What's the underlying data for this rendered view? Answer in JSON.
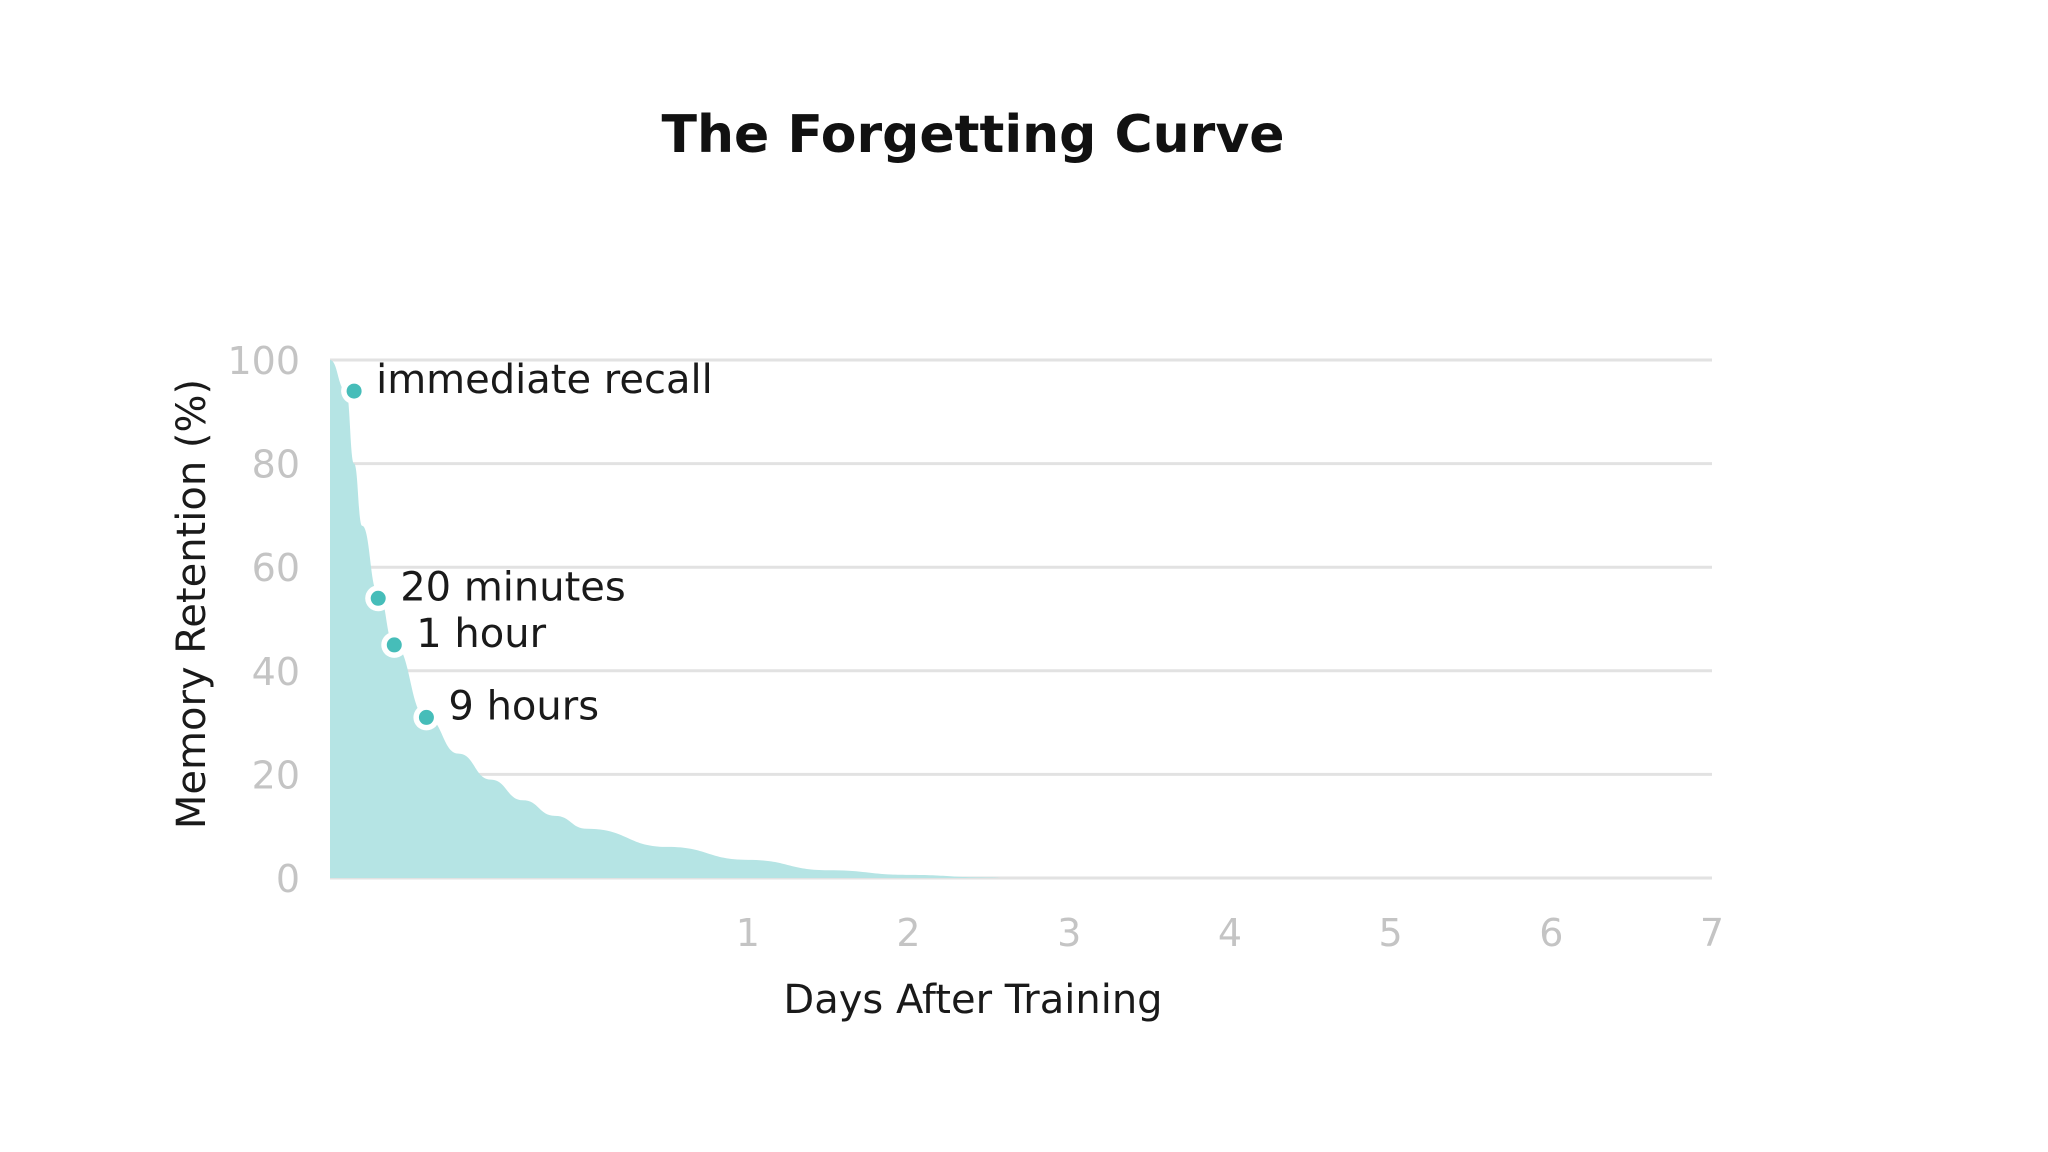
{
  "chart_data": {
    "type": "area",
    "title": "The Forgetting Curve",
    "xlabel": "Days After Training",
    "ylabel": "Memory Retention (%)",
    "xlim": [
      -1.6,
      7
    ],
    "ylim": [
      0,
      100
    ],
    "x_ticks": [
      1,
      2,
      3,
      4,
      5,
      6,
      7
    ],
    "y_ticks": [
      0,
      20,
      40,
      60,
      80,
      100
    ],
    "grid": true,
    "colors": {
      "area": "#b5e4e4",
      "point": "#46bdb9",
      "grid": "#e2e2e2",
      "tick": "#c4c4c4"
    },
    "series": [
      {
        "x": [
          -1.6,
          -1.5,
          -1.45,
          -1.4,
          -1.3,
          -1.2,
          -1.0,
          -0.8,
          -0.6,
          -0.4,
          -0.2,
          0.0,
          0.5,
          1.0,
          1.5,
          2.0,
          2.5,
          2.6
        ],
        "y": [
          100,
          94,
          80,
          68,
          55,
          45,
          31,
          24,
          19,
          15,
          12,
          9.5,
          6,
          3.5,
          1.5,
          0.6,
          0.1,
          0
        ]
      }
    ],
    "annotations": [
      {
        "label": "immediate recall",
        "x": -1.45,
        "y": 94
      },
      {
        "label": "20 minutes",
        "x": -1.3,
        "y": 54
      },
      {
        "label": "1 hour",
        "x": -1.2,
        "y": 45
      },
      {
        "label": "9 hours",
        "x": -1.0,
        "y": 31
      }
    ]
  }
}
